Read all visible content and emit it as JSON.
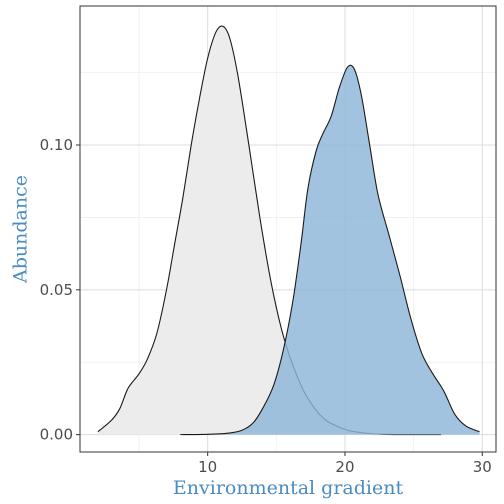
{
  "chart_data": {
    "type": "area",
    "xlabel": "Environmental gradient",
    "ylabel": "Abundance",
    "xlim": [
      0.7,
      31.0
    ],
    "ylim": [
      -0.006,
      0.148
    ],
    "x_ticks": [
      10,
      20,
      30
    ],
    "x_tick_labels": [
      "10",
      "20",
      "30"
    ],
    "y_ticks": [
      0.0,
      0.05,
      0.1
    ],
    "y_tick_labels": [
      "0.00",
      "0.05",
      "0.10"
    ],
    "x_minor": [
      5,
      15,
      25
    ],
    "y_minor": [
      0.025,
      0.075,
      0.125
    ],
    "grid": true,
    "series": [
      {
        "color": "#ececec",
        "x": [
          2.0,
          3.0,
          3.6,
          4.2,
          5.0,
          5.6,
          6.3,
          7.0,
          7.6,
          8.2,
          8.8,
          9.4,
          10.0,
          10.6,
          11.1,
          11.6,
          12.2,
          13.0,
          13.8,
          14.6,
          15.4,
          16.2,
          17.0,
          17.8,
          18.6,
          19.4,
          20.2,
          21.0,
          22.0,
          23.0,
          24.0,
          25.5,
          27.0
        ],
        "y": [
          0.001,
          0.005,
          0.009,
          0.016,
          0.021,
          0.026,
          0.035,
          0.05,
          0.066,
          0.082,
          0.1,
          0.116,
          0.13,
          0.139,
          0.141,
          0.137,
          0.124,
          0.1,
          0.075,
          0.053,
          0.036,
          0.024,
          0.015,
          0.009,
          0.005,
          0.003,
          0.0015,
          0.0008,
          0.0003,
          0.0001,
          0.0,
          0.0,
          0.0
        ]
      },
      {
        "color": "#8cb6d9",
        "x": [
          8.0,
          10.0,
          11.5,
          12.5,
          13.3,
          14.0,
          14.8,
          15.5,
          16.2,
          16.8,
          17.3,
          17.9,
          18.4,
          19.0,
          19.6,
          20.2,
          20.7,
          21.2,
          21.8,
          22.4,
          23.2,
          24.0,
          24.8,
          25.6,
          26.4,
          27.2,
          28.0,
          28.8,
          29.8
        ],
        "y": [
          0.0,
          0.0001,
          0.0005,
          0.0015,
          0.004,
          0.009,
          0.017,
          0.029,
          0.046,
          0.066,
          0.085,
          0.098,
          0.104,
          0.11,
          0.12,
          0.127,
          0.126,
          0.117,
          0.1,
          0.083,
          0.069,
          0.055,
          0.04,
          0.028,
          0.021,
          0.015,
          0.007,
          0.003,
          0.001
        ]
      }
    ]
  }
}
